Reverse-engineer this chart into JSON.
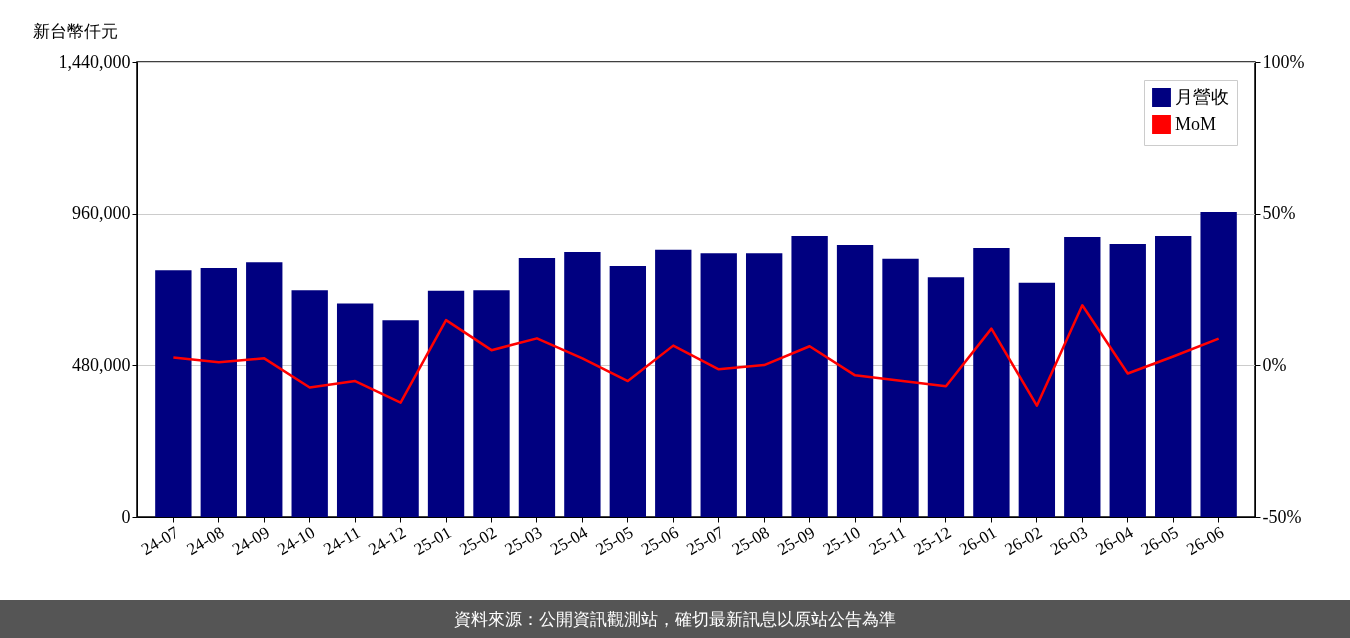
{
  "chart_data": {
    "type": "bar",
    "ylabel": "新台幣仟元",
    "categories": [
      "24-07",
      "24-08",
      "24-09",
      "24-10",
      "24-11",
      "24-12",
      "25-01",
      "25-02",
      "25-03",
      "25-04",
      "25-05",
      "25-06",
      "25-07",
      "25-08",
      "25-09",
      "25-10",
      "25-11",
      "25-12",
      "26-01",
      "26-02",
      "26-03",
      "26-04",
      "26-05",
      "26-06"
    ],
    "series": [
      {
        "name": "月營收",
        "color": "#000080",
        "values": [
          781000,
          788000,
          806000,
          718000,
          676000,
          623000,
          716000,
          718000,
          820000,
          839000,
          794000,
          846000,
          835000,
          835000,
          889000,
          861000,
          817000,
          759000,
          851000,
          741000,
          886000,
          864000,
          889000,
          965000
        ]
      },
      {
        "name": "MoM",
        "type": "line",
        "axis": "y2",
        "color": "#ff0000",
        "values": [
          2.6,
          1.0,
          2.3,
          -7.3,
          -5.2,
          -12.3,
          14.9,
          5.0,
          8.9,
          2.3,
          -5.2,
          6.5,
          -1.3,
          0.1,
          6.3,
          -3.3,
          -5.1,
          -6.9,
          12.1,
          -13.3,
          19.8,
          -2.7,
          2.9,
          8.8
        ]
      }
    ],
    "ylim": [
      0,
      1440000
    ],
    "yticks": [
      0,
      {
        "value": 480000,
        "label": "480,000"
      },
      {
        "value": 960000,
        "label": "960,000"
      },
      {
        "value": 1440000,
        "label": "1,440,000"
      }
    ],
    "y2lim": [
      -50,
      100
    ],
    "y2ticks": [
      {
        "value": -50,
        "label": "-50%"
      },
      {
        "value": 0,
        "label": "0%"
      },
      {
        "value": 50,
        "label": "50%"
      },
      {
        "value": 100,
        "label": "100%"
      }
    ],
    "grid": "y",
    "legend": "top right",
    "marker": "none",
    "annotations": [
      "資料來源：公開資訊觀測站，確切最新訊息以原站公告為準"
    ]
  }
}
